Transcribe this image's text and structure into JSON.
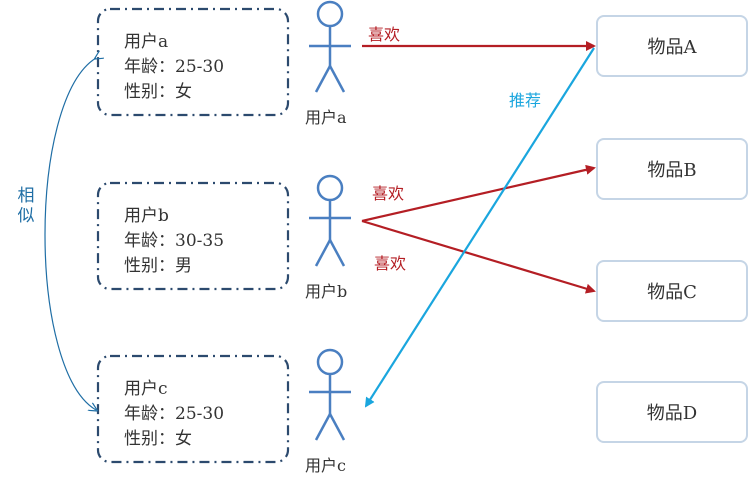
{
  "profiles": [
    {
      "name": "用户a",
      "age": "年龄：25-30",
      "gender": "性别：女"
    },
    {
      "name": "用户b",
      "age": "年龄：30-35",
      "gender": "性别：男"
    },
    {
      "name": "用户c",
      "age": "年龄：25-30",
      "gender": "性别：女"
    }
  ],
  "users": [
    {
      "label": "用户a"
    },
    {
      "label": "用户b"
    },
    {
      "label": "用户c"
    }
  ],
  "items": [
    {
      "label": "物品A"
    },
    {
      "label": "物品B"
    },
    {
      "label": "物品C"
    },
    {
      "label": "物品D"
    }
  ],
  "edges": {
    "a_likes_A": "喜欢",
    "b_likes_B": "喜欢",
    "b_likes_C": "喜欢",
    "recommend": "推荐",
    "similar": "相似"
  },
  "colors": {
    "like": "#b41e24",
    "recommend": "#1aa6de",
    "person": "#4a7fc1",
    "similar": "#1f6ea5",
    "profile_border": "#2c4a6e",
    "item_border": "#c5d5e6"
  }
}
